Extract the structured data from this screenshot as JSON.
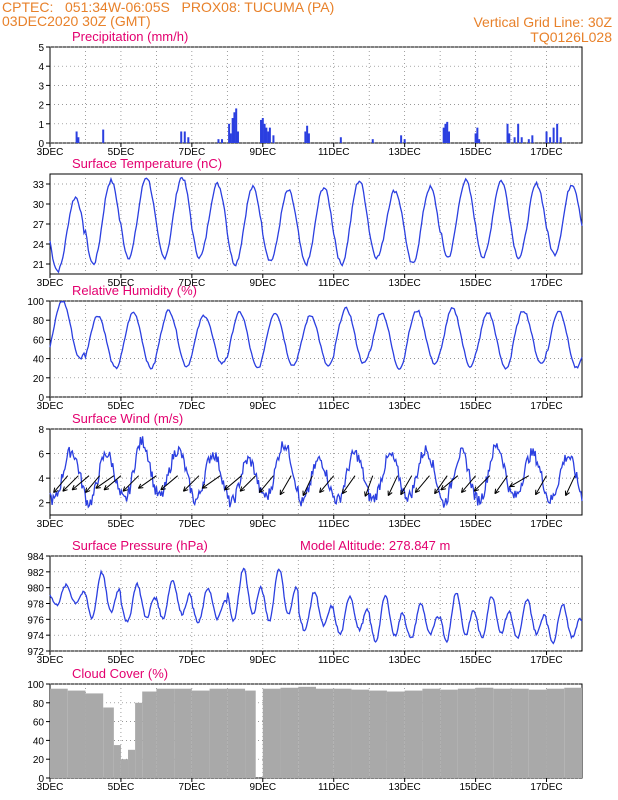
{
  "header": {
    "line1": "CPTEC:   051:34W-06:05S   PROX08: TUCUMA (PA)",
    "line2": "03DEC2020 30Z (GMT)",
    "grid_note": "Vertical Grid Line: 30Z",
    "code": "TQ0126L028"
  },
  "colors": {
    "header": "#e8812a",
    "title": "#e3006f",
    "line": "#2b3fe0",
    "cloud": "#a9a9a9"
  },
  "x_day_range": [
    3,
    18
  ],
  "x_tick_labels": [
    "3DEC",
    "5DEC",
    "7DEC",
    "9DEC",
    "11DEC",
    "13DEC",
    "15DEC",
    "17DEC"
  ],
  "chart_data": [
    {
      "id": "precip",
      "type": "bar",
      "title": "Precipitation (mm/h)",
      "ylim": [
        0,
        5
      ],
      "yticks": [
        0,
        1,
        2,
        3,
        4,
        5
      ],
      "xlabels": [
        "3DEC",
        "5DEC",
        "7DEC",
        "9DEC",
        "11DEC",
        "13DEC",
        "15DEC",
        "17DEC"
      ],
      "x": [
        3.75,
        3.8,
        4.5,
        6.7,
        6.8,
        6.9,
        7.75,
        7.85,
        8.05,
        8.1,
        8.15,
        8.2,
        8.25,
        8.3,
        8.95,
        9.0,
        9.05,
        9.1,
        9.15,
        9.2,
        9.3,
        10.2,
        10.25,
        10.3,
        11.2,
        12.1,
        12.9,
        13.0,
        14.1,
        14.15,
        14.2,
        14.25,
        15.0,
        15.05,
        15.1,
        15.9,
        15.95,
        16.1,
        16.2,
        16.3,
        16.5,
        16.6,
        17.0,
        17.1,
        17.2,
        17.3,
        17.4
      ],
      "values": [
        0.6,
        0.3,
        0.7,
        0.6,
        0.6,
        0.3,
        0.2,
        0.2,
        1.0,
        0.5,
        1.3,
        1.6,
        1.8,
        0.6,
        1.2,
        1.3,
        1.0,
        0.8,
        0.6,
        0.8,
        0.4,
        0.6,
        0.9,
        0.5,
        0.3,
        0.2,
        0.4,
        0.2,
        0.8,
        1.0,
        1.1,
        0.6,
        0.5,
        0.8,
        0.2,
        1.0,
        0.5,
        0.3,
        1.0,
        0.3,
        0.2,
        0.4,
        0.6,
        0.3,
        0.8,
        1.0,
        0.3
      ]
    },
    {
      "id": "temp",
      "type": "line",
      "title": "Surface Temperature (nC)",
      "ylim": [
        19.5,
        34.5
      ],
      "yticks": [
        21,
        24,
        27,
        30,
        33
      ],
      "xlabels": [
        "3DEC",
        "5DEC",
        "7DEC",
        "9DEC",
        "11DEC",
        "13DEC",
        "15DEC",
        "17DEC"
      ],
      "day_highs": [
        31,
        33.5,
        34,
        34,
        33,
        32.5,
        32,
        32.5,
        33.5,
        32,
        32.5,
        33.5,
        33.5,
        33,
        33,
        33
      ],
      "day_lows": [
        20,
        21,
        22,
        22,
        22,
        21,
        21.5,
        21,
        21,
        22,
        21,
        22,
        22,
        22,
        22.5
      ]
    },
    {
      "id": "rh",
      "type": "line",
      "title": "Relative Humidity (%)",
      "ylim": [
        0,
        100
      ],
      "yticks": [
        0,
        20,
        40,
        60,
        80,
        100
      ],
      "xlabels": [
        "3DEC",
        "5DEC",
        "7DEC",
        "9DEC",
        "11DEC",
        "13DEC",
        "15DEC",
        "17DEC"
      ],
      "day_highs": [
        100,
        85,
        88,
        90,
        85,
        88,
        88,
        85,
        92,
        88,
        90,
        92,
        88,
        90,
        90,
        90
      ],
      "day_lows": [
        40,
        30,
        30,
        32,
        35,
        30,
        33,
        32,
        35,
        30,
        35,
        32,
        30,
        35,
        30,
        35
      ]
    },
    {
      "id": "wind",
      "type": "line",
      "title": "Surface Wind (m/s)",
      "ylim": [
        1,
        8
      ],
      "yticks": [
        2,
        4,
        6,
        8
      ],
      "xlabels": [
        "3DEC",
        "5DEC",
        "7DEC",
        "9DEC",
        "11DEC",
        "13DEC",
        "15DEC",
        "17DEC"
      ],
      "day_peaks": [
        6.2,
        6.0,
        7.0,
        6.3,
        6.0,
        5.5,
        6.8,
        5.5,
        6.0,
        5.8,
        6.3,
        6.0,
        6.6,
        6.0,
        5.8,
        6.2
      ],
      "day_mins": [
        2.2,
        2.0,
        2.2,
        2.5,
        2.2,
        2.0,
        2.5,
        2.0,
        2.2,
        2.3,
        2.5,
        2.0,
        2.2,
        2.5,
        2.2,
        1.4
      ],
      "arrow_x": [
        3.5,
        3.8,
        4.1,
        4.4,
        4.8,
        5.0,
        5.5,
        6.0,
        6.6,
        7.2,
        7.8,
        8.4,
        8.8,
        9.3,
        9.8,
        10.4,
        11.0,
        11.6,
        12.1,
        12.8,
        13.2,
        13.7,
        14.2,
        14.5,
        15.0,
        15.4,
        15.9,
        16.5,
        17.0,
        17.8
      ],
      "arrow_angle": [
        230,
        225,
        220,
        230,
        215,
        220,
        225,
        215,
        220,
        225,
        215,
        220,
        225,
        230,
        240,
        245,
        230,
        235,
        250,
        245,
        240,
        230,
        235,
        220,
        230,
        225,
        235,
        210,
        240,
        245
      ]
    },
    {
      "id": "pressure",
      "type": "line",
      "title": "Surface Pressure (hPa)",
      "altitude_label": "Model Altitude: 278.847 m",
      "ylim": [
        972,
        984
      ],
      "yticks": [
        972,
        974,
        976,
        978,
        980,
        982,
        984
      ],
      "xlabels": [
        "3DEC",
        "5DEC",
        "7DEC",
        "9DEC",
        "11DEC",
        "13DEC",
        "15DEC",
        "17DEC"
      ],
      "day_highs": [
        980.3,
        982.0,
        980.5,
        981.0,
        980.0,
        982.5,
        982.5,
        979.5,
        979.0,
        979.0,
        978.0,
        979.5,
        979.0,
        978.5,
        978.0
      ],
      "day_lows": [
        977.5,
        975.5,
        975.0,
        975.5,
        975.0,
        975.0,
        975.0,
        974.0,
        973.5,
        972.5,
        973.0,
        972.5,
        973.0,
        973.0,
        972.5
      ]
    },
    {
      "id": "cloud",
      "type": "bar",
      "title": "Cloud Cover (%)",
      "ylim": [
        0,
        100
      ],
      "yticks": [
        0,
        20,
        40,
        60,
        80,
        100
      ],
      "xlabels": [
        "3DEC",
        "5DEC",
        "7DEC",
        "9DEC",
        "11DEC",
        "13DEC",
        "15DEC",
        "17DEC"
      ],
      "x": [
        3.0,
        3.5,
        4.0,
        4.5,
        4.8,
        5.0,
        5.2,
        5.4,
        5.6,
        6.0,
        6.5,
        7.0,
        7.5,
        8.0,
        8.5,
        8.8,
        9.0,
        9.5,
        10.0,
        10.5,
        11.0,
        11.5,
        12.0,
        12.5,
        13.0,
        13.5,
        14.0,
        14.5,
        15.0,
        15.5,
        16.0,
        16.5,
        17.0,
        17.5,
        18.0
      ],
      "values": [
        95,
        93,
        90,
        75,
        35,
        20,
        30,
        80,
        92,
        95,
        95,
        93,
        95,
        95,
        93,
        0,
        95,
        96,
        97,
        95,
        95,
        94,
        93,
        92,
        93,
        95,
        94,
        95,
        96,
        95,
        95,
        94,
        95,
        96,
        95
      ]
    }
  ]
}
